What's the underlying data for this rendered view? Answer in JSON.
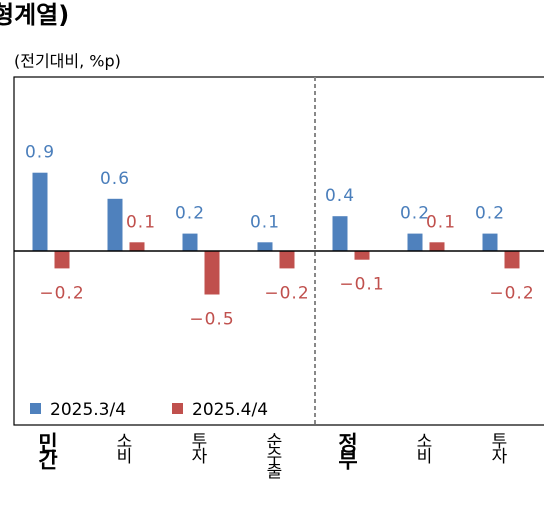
{
  "chart_data": {
    "type": "bar",
    "title": "형계열)",
    "subtitle": "(전기대비, %p)",
    "categories": [
      "민간",
      "소비",
      "투자",
      "순수출",
      "정부",
      "소비",
      "투자"
    ],
    "series": [
      {
        "name": "2025.3/4",
        "color": "#4f81bd",
        "values": [
          0.9,
          0.6,
          0.2,
          0.1,
          0.4,
          0.2,
          0.2
        ]
      },
      {
        "name": "2025.4/4",
        "color": "#c0504d",
        "values": [
          -0.2,
          0.1,
          -0.5,
          -0.2,
          -0.1,
          0.1,
          -0.2
        ],
        "value_labels": [
          "−0.2",
          "0.1",
          "−0.5",
          "−0.2",
          "−0.1",
          "0.1",
          "−0.2"
        ]
      }
    ],
    "ylim": [
      -2,
      2
    ],
    "legend": "lower left"
  }
}
